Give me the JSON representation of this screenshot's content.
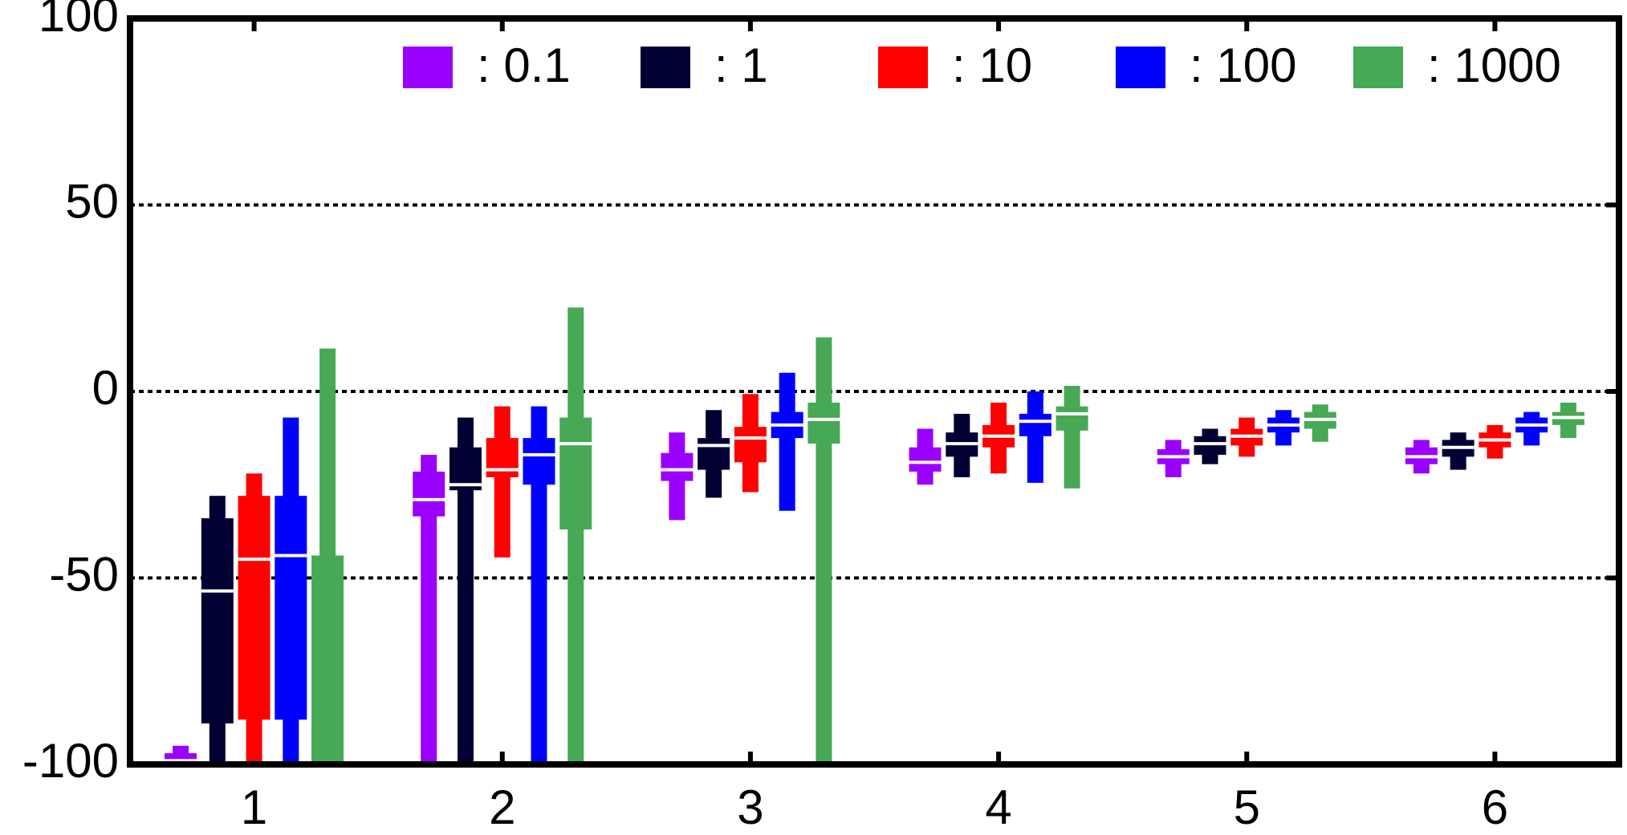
{
  "chart_data": {
    "type": "box",
    "x": [
      1,
      2,
      3,
      4,
      5,
      6
    ],
    "xlim": [
      0.5,
      6.5
    ],
    "xticks": [
      1,
      2,
      3,
      4,
      5,
      6
    ],
    "ylim": [
      -100,
      100
    ],
    "yticks": [
      -100,
      -50,
      0,
      50,
      100
    ],
    "grid": true,
    "legend": "top",
    "series": [
      {
        "name": ": 0.1",
        "color": "#9a00ff",
        "min": [
          -100,
          -100,
          -34.5,
          -25,
          -23,
          -22
        ],
        "q1": [
          -100,
          -33.5,
          -24,
          -21.5,
          -19.5,
          -19.5
        ],
        "median": [
          -99,
          -29,
          -21,
          -19,
          -17.5,
          -17.5
        ],
        "q3": [
          -97,
          -21.5,
          -16.5,
          -15,
          -15.5,
          -15
        ],
        "max": [
          -95,
          -17,
          -11,
          -10,
          -13,
          -13
        ]
      },
      {
        "name": ": 1",
        "color": "#000033",
        "min": [
          -100,
          -100,
          -28.5,
          -23,
          -19.5,
          -21
        ],
        "q1": [
          -89,
          -26.5,
          -21,
          -17.5,
          -17,
          -17.5
        ],
        "median": [
          -53.5,
          -25,
          -14.5,
          -14,
          -14,
          -15
        ],
        "q3": [
          -34,
          -15,
          -12.5,
          -11,
          -12,
          -13
        ],
        "max": [
          -28,
          -7,
          -5,
          -6,
          -10,
          -11
        ]
      },
      {
        "name": ": 10",
        "color": "#ff0000",
        "min": [
          -100,
          -44.5,
          -27,
          -22,
          -17.5,
          -18
        ],
        "q1": [
          -88,
          -23,
          -19,
          -15,
          -14.5,
          -15
        ],
        "median": [
          -45,
          -21,
          -12.5,
          -12,
          -12,
          -13
        ],
        "q3": [
          -28,
          -12.5,
          -9.5,
          -9,
          -10,
          -11
        ],
        "max": [
          -22,
          -4,
          -0.7,
          -3,
          -7,
          -9
        ]
      },
      {
        "name": ": 100",
        "color": "#0000ff",
        "min": [
          -100,
          -100,
          -32,
          -24.5,
          -14.5,
          -14.5
        ],
        "q1": [
          -88,
          -25,
          -12.5,
          -12,
          -11,
          -11
        ],
        "median": [
          -44,
          -17,
          -9,
          -8,
          -9,
          -9
        ],
        "q3": [
          -28,
          -12.5,
          -5.5,
          -6,
          -7,
          -7
        ],
        "max": [
          -7,
          -4,
          5,
          0,
          -5,
          -5.5
        ]
      },
      {
        "name": ": 1000",
        "color": "#47a856",
        "min": [
          -100,
          -100,
          -100,
          -26,
          -13.5,
          -12.5
        ],
        "q1": [
          -100,
          -37,
          -14,
          -10.5,
          -10,
          -9
        ],
        "median": [
          -100,
          -14,
          -7.5,
          -6,
          -7.5,
          -7
        ],
        "q3": [
          -44,
          -7,
          -3,
          -4,
          -5.5,
          -5.5
        ],
        "max": [
          11.5,
          22.5,
          14.5,
          1.5,
          -3.5,
          -3
        ]
      }
    ]
  }
}
